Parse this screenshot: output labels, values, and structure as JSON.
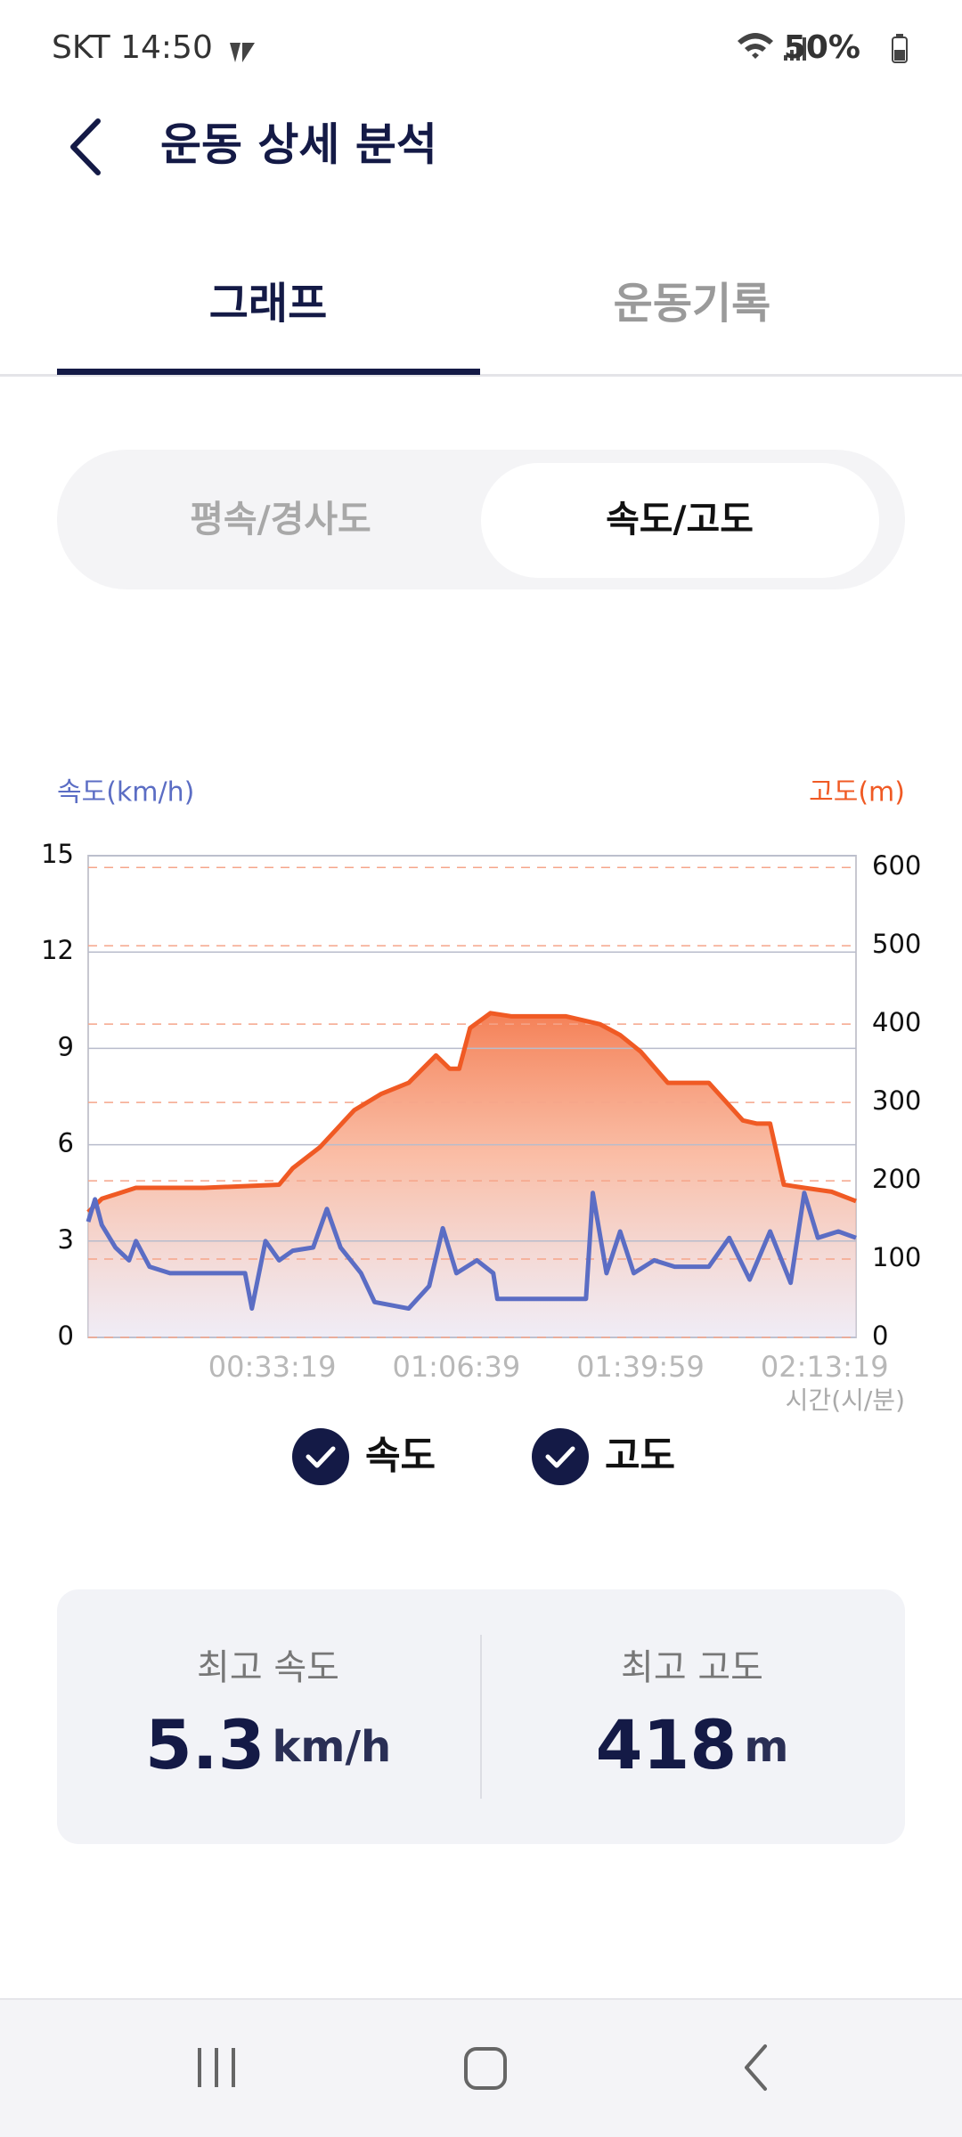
{
  "status_bar": {
    "carrier_time": "SKT 14:50",
    "battery": "50%"
  },
  "header": {
    "title": "운동 상세 분석"
  },
  "tabs": {
    "items": [
      "그래프",
      "운동기록"
    ]
  },
  "toggle": {
    "items": [
      "평속/경사도",
      "속도/고도"
    ]
  },
  "chart_data": {
    "type": "line",
    "y_label": "속도(km/h)",
    "y2_label": "고도(m)",
    "x_label": "시간(시/분)",
    "xlim": [
      0,
      8340
    ],
    "xticks": [
      {
        "value": 1999,
        "label": "00:33:19"
      },
      {
        "value": 3999,
        "label": "01:06:39"
      },
      {
        "value": 5999,
        "label": "01:39:59"
      },
      {
        "value": 7999,
        "label": "02:13:19"
      }
    ],
    "ylim": [
      0,
      15
    ],
    "yticks": [
      0,
      3,
      6,
      9,
      12,
      15
    ],
    "y2lim": [
      0,
      615
    ],
    "y2ticks": [
      0,
      100,
      200,
      300,
      400,
      500,
      600
    ],
    "series": [
      {
        "name": "속도",
        "color": "#5b6dc4",
        "x": [
          0,
          74,
          148,
          296,
          444,
          519,
          667,
          889,
          1704,
          1778,
          1926,
          2074,
          2222,
          2444,
          2593,
          2741,
          2963,
          3111,
          3481,
          3704,
          3852,
          4000,
          4222,
          4400,
          4444,
          5407,
          5481,
          5630,
          5778,
          5926,
          6148,
          6370,
          6741,
          6963,
          7185,
          7407,
          7630,
          7778,
          7926,
          8148,
          8340
        ],
        "values": [
          3.6,
          4.3,
          3.5,
          2.8,
          2.4,
          3.0,
          2.2,
          2.0,
          2.0,
          0.9,
          3.0,
          2.4,
          2.7,
          2.8,
          4.0,
          2.8,
          2.0,
          1.1,
          0.9,
          1.6,
          3.4,
          2.0,
          2.4,
          2.0,
          1.2,
          1.2,
          4.5,
          2.0,
          3.3,
          2.0,
          2.4,
          2.2,
          2.2,
          3.1,
          1.8,
          3.3,
          1.7,
          4.5,
          3.1,
          3.3,
          3.1
        ]
      },
      {
        "name": "고도",
        "color": "#f05a24",
        "axis": "y2",
        "fill": true,
        "x": [
          0,
          148,
          518,
          1259,
          2074,
          2222,
          2519,
          2889,
          3185,
          3481,
          3778,
          3926,
          4030,
          4148,
          4370,
          4593,
          5185,
          5556,
          5778,
          6000,
          6296,
          6741,
          7111,
          7259,
          7407,
          7556,
          7778,
          8074,
          8340
        ],
        "values": [
          160,
          177,
          191,
          191,
          195,
          216,
          243,
          290,
          311,
          325,
          360,
          343,
          343,
          395,
          414,
          410,
          410,
          400,
          386,
          365,
          325,
          325,
          277,
          273,
          273,
          195,
          191,
          186,
          174
        ]
      }
    ]
  },
  "stats": [
    {
      "label": "최고 속도",
      "value": 5.3,
      "unit": "km/h"
    },
    {
      "label": "최고 고도",
      "value": 418,
      "unit": "m"
    }
  ]
}
